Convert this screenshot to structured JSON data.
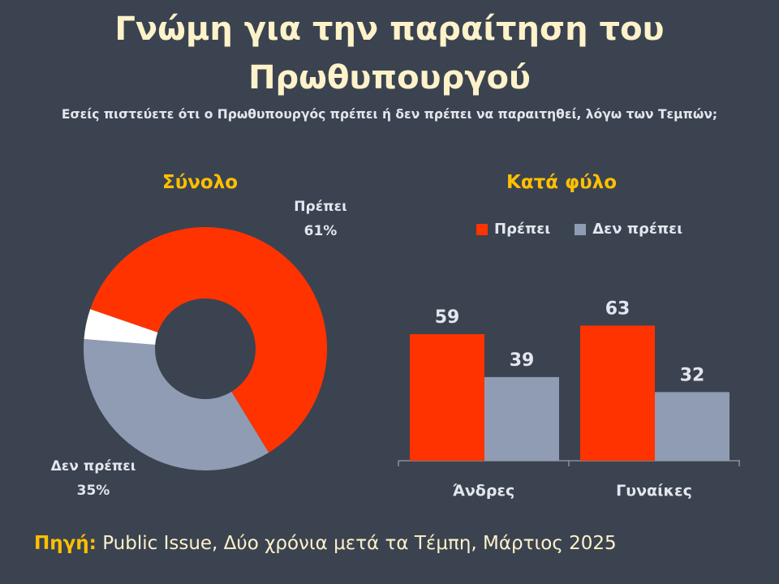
{
  "title": "Γνώμη για την παραίτηση του Πρωθυπουργού",
  "subtitle": "Εσείς πιστεύετε ότι ο Πρωθυπουργός πρέπει ή δεν πρέπει να παραιτηθεί, λόγω των Τεμπών;",
  "source": {
    "label": "Πηγή:",
    "text": "Public Issue, Δύο χρόνια μετά τα Τέμπη, Μάρτιος 2025"
  },
  "colors": {
    "should": "#ff3300",
    "should_not": "#8f9cb3",
    "other": "#ffffff"
  },
  "chart_data": [
    {
      "type": "pie",
      "title": "Σύνολο",
      "slices": [
        {
          "name": "Πρέπει",
          "value": 61,
          "label": "61%"
        },
        {
          "name": "Δεν πρέπει",
          "value": 35,
          "label": "35%"
        },
        {
          "name": "",
          "value": 4
        }
      ]
    },
    {
      "type": "bar",
      "title": "Κατά φύλο",
      "categories": [
        "Άνδρες",
        "Γυναίκες"
      ],
      "series": [
        {
          "name": "Πρέπει",
          "values": [
            59,
            63
          ]
        },
        {
          "name": "Δεν πρέπει",
          "values": [
            39,
            32
          ]
        }
      ],
      "legend": "top",
      "ylim": [
        0,
        70
      ]
    }
  ]
}
